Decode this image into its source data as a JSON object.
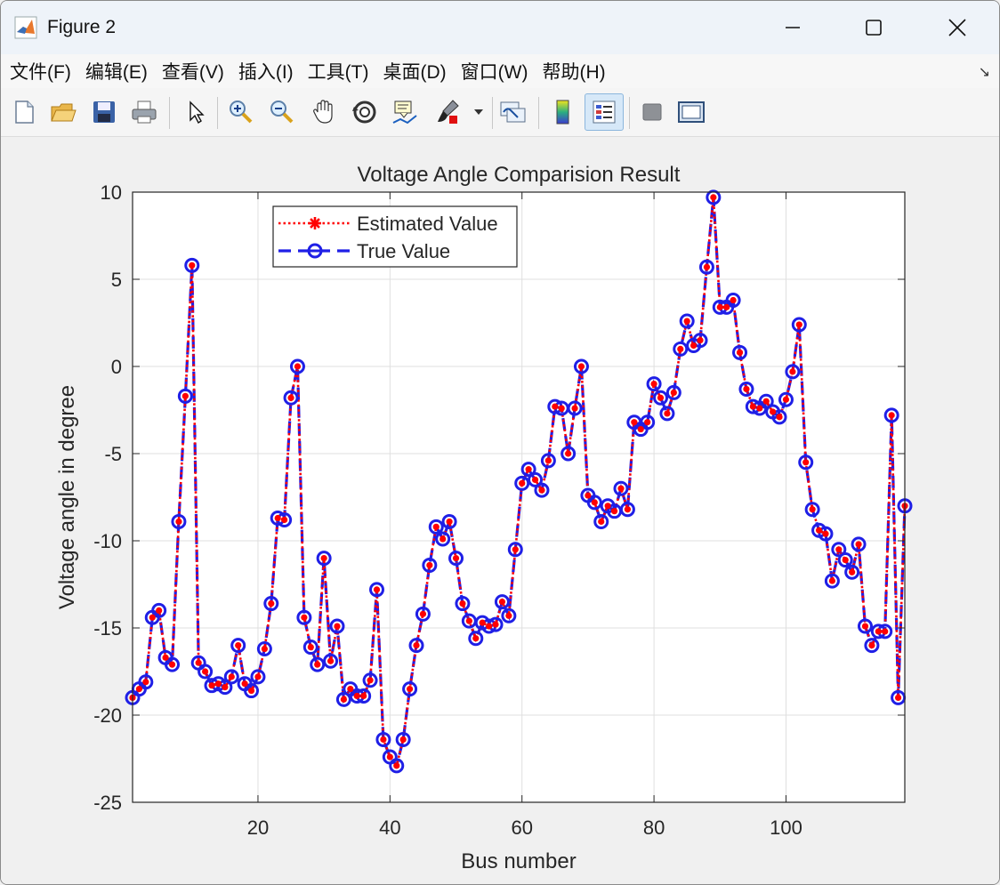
{
  "window": {
    "title": "Figure 2"
  },
  "menu": [
    "文件(F)",
    "编辑(E)",
    "查看(V)",
    "插入(I)",
    "工具(T)",
    "桌面(D)",
    "窗口(W)",
    "帮助(H)"
  ],
  "toolbar": [
    "new-icon",
    "open-icon",
    "save-icon",
    "print-icon",
    "pointer-icon",
    "zoom-in-icon",
    "zoom-out-icon",
    "pan-icon",
    "rotate-icon",
    "data-cursor-icon",
    "brush-icon",
    "link-icon",
    "colorbar-icon",
    "legend-icon",
    "hide-tools-icon",
    "dock-icon"
  ],
  "colors": {
    "estimated": "#ff0000",
    "true": "#1f1fe6"
  },
  "chart_data": {
    "type": "line",
    "title": "Voltage Angle Comparision Result",
    "xlabel": "Bus number",
    "ylabel": "Voltage angle in degree",
    "xlim": [
      1,
      118
    ],
    "ylim": [
      -25,
      10
    ],
    "xticks": [
      20,
      40,
      60,
      80,
      100
    ],
    "yticks": [
      10,
      5,
      0,
      -5,
      -10,
      -15,
      -20,
      -25
    ],
    "grid": true,
    "legend_position": "top-left",
    "legend": [
      "Estimated Value",
      "True Value"
    ],
    "x": [
      1,
      2,
      3,
      4,
      5,
      6,
      7,
      8,
      9,
      10,
      11,
      12,
      13,
      14,
      15,
      16,
      17,
      18,
      19,
      20,
      21,
      22,
      23,
      24,
      25,
      26,
      27,
      28,
      29,
      30,
      31,
      32,
      33,
      34,
      35,
      36,
      37,
      38,
      39,
      40,
      41,
      42,
      43,
      44,
      45,
      46,
      47,
      48,
      49,
      50,
      51,
      52,
      53,
      54,
      55,
      56,
      57,
      58,
      59,
      60,
      61,
      62,
      63,
      64,
      65,
      66,
      67,
      68,
      69,
      70,
      71,
      72,
      73,
      74,
      75,
      76,
      77,
      78,
      79,
      80,
      81,
      82,
      83,
      84,
      85,
      86,
      87,
      88,
      89,
      90,
      91,
      92,
      93,
      94,
      95,
      96,
      97,
      98,
      99,
      100,
      101,
      102,
      103,
      104,
      105,
      106,
      107,
      108,
      109,
      110,
      111,
      112,
      113,
      114,
      115,
      116,
      117,
      118
    ],
    "series": [
      {
        "name": "Estimated Value",
        "values": [
          -19.0,
          -18.5,
          -18.1,
          -14.4,
          -14.0,
          -16.7,
          -17.1,
          -8.9,
          -1.7,
          5.8,
          -17.0,
          -17.5,
          -18.3,
          -18.2,
          -18.4,
          -17.8,
          -16.0,
          -18.2,
          -18.6,
          -17.8,
          -16.2,
          -13.6,
          -8.7,
          -8.8,
          -1.8,
          0.0,
          -14.4,
          -16.1,
          -17.1,
          -11.0,
          -16.9,
          -14.9,
          -19.1,
          -18.5,
          -18.9,
          -18.9,
          -18.0,
          -12.8,
          -21.4,
          -22.4,
          -22.9,
          -21.4,
          -18.5,
          -16.0,
          -14.2,
          -11.4,
          -9.2,
          -9.9,
          -8.9,
          -11.0,
          -13.6,
          -14.6,
          -15.6,
          -14.7,
          -14.9,
          -14.8,
          -13.5,
          -14.3,
          -10.5,
          -6.7,
          -5.9,
          -6.5,
          -7.1,
          -5.4,
          -2.3,
          -2.4,
          -5.0,
          -2.4,
          0.0,
          -7.4,
          -7.8,
          -8.9,
          -8.0,
          -8.3,
          -7.0,
          -8.2,
          -3.2,
          -3.6,
          -3.2,
          -1.0,
          -1.8,
          -2.7,
          -1.5,
          1.0,
          2.6,
          1.2,
          1.5,
          5.7,
          9.7,
          3.4,
          3.4,
          3.8,
          0.8,
          -1.3,
          -2.3,
          -2.4,
          -2.0,
          -2.6,
          -2.9,
          -1.9,
          -0.3,
          2.4,
          -5.5,
          -8.2,
          -9.4,
          -9.6,
          -12.3,
          -10.5,
          -11.1,
          -11.8,
          -10.2,
          -14.9,
          -16.0,
          -15.2,
          -15.2,
          -2.8,
          -19.0,
          -8.0
        ]
      },
      {
        "name": "True Value",
        "values": [
          -19.0,
          -18.5,
          -18.1,
          -14.4,
          -14.0,
          -16.7,
          -17.1,
          -8.9,
          -1.7,
          5.8,
          -17.0,
          -17.5,
          -18.3,
          -18.2,
          -18.4,
          -17.8,
          -16.0,
          -18.2,
          -18.6,
          -17.8,
          -16.2,
          -13.6,
          -8.7,
          -8.8,
          -1.8,
          0.0,
          -14.4,
          -16.1,
          -17.1,
          -11.0,
          -16.9,
          -14.9,
          -19.1,
          -18.5,
          -18.9,
          -18.9,
          -18.0,
          -12.8,
          -21.4,
          -22.4,
          -22.9,
          -21.4,
          -18.5,
          -16.0,
          -14.2,
          -11.4,
          -9.2,
          -9.9,
          -8.9,
          -11.0,
          -13.6,
          -14.6,
          -15.6,
          -14.7,
          -14.9,
          -14.8,
          -13.5,
          -14.3,
          -10.5,
          -6.7,
          -5.9,
          -6.5,
          -7.1,
          -5.4,
          -2.3,
          -2.4,
          -5.0,
          -2.4,
          0.0,
          -7.4,
          -7.8,
          -8.9,
          -8.0,
          -8.3,
          -7.0,
          -8.2,
          -3.2,
          -3.6,
          -3.2,
          -1.0,
          -1.8,
          -2.7,
          -1.5,
          1.0,
          2.6,
          1.2,
          1.5,
          5.7,
          9.7,
          3.4,
          3.4,
          3.8,
          0.8,
          -1.3,
          -2.3,
          -2.4,
          -2.0,
          -2.6,
          -2.9,
          -1.9,
          -0.3,
          2.4,
          -5.5,
          -8.2,
          -9.4,
          -9.6,
          -12.3,
          -10.5,
          -11.1,
          -11.8,
          -10.2,
          -14.9,
          -16.0,
          -15.2,
          -15.2,
          -2.8,
          -19.0,
          -8.0
        ]
      }
    ]
  }
}
